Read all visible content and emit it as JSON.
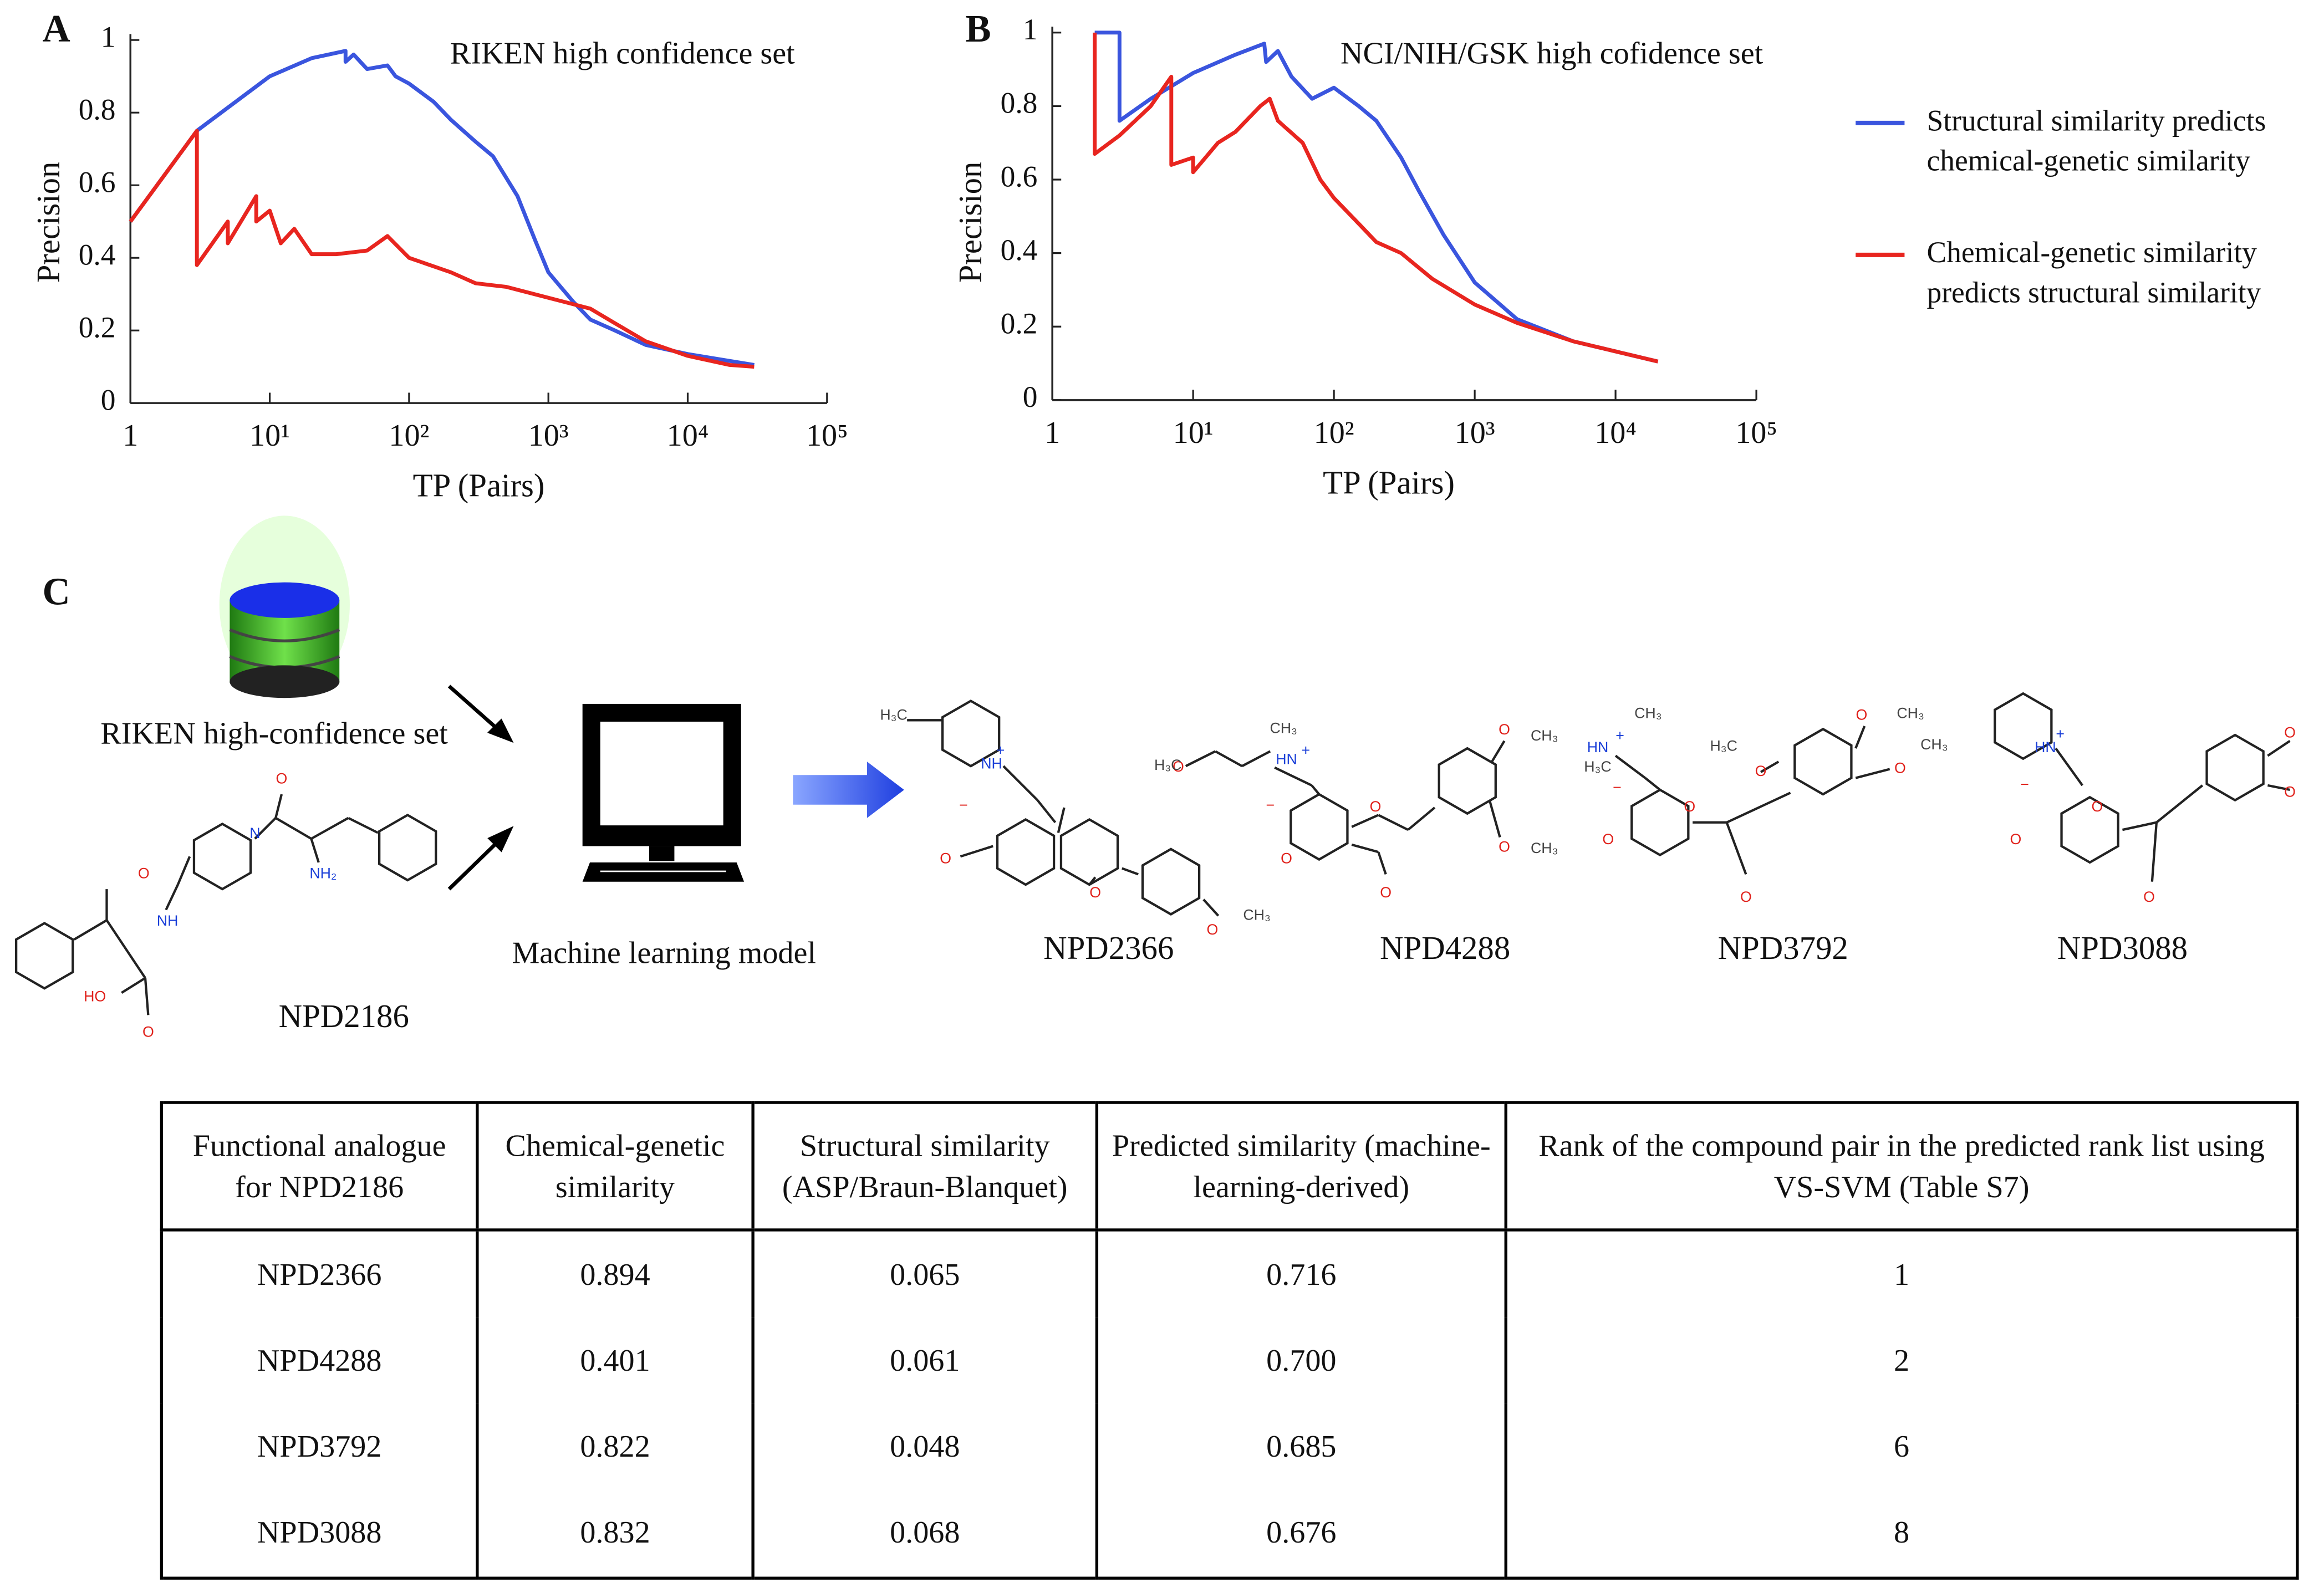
{
  "chart_data": [
    {
      "type": "line",
      "panel": "A",
      "title": "RIKEN high confidence set",
      "xlabel": "TP (Pairs)",
      "ylabel": "Precision",
      "xscale": "log",
      "xlim": [
        1,
        100000
      ],
      "ylim": [
        0,
        1
      ],
      "xticks": [
        1,
        {
          "value": 10,
          "label": "10¹"
        },
        {
          "value": 100,
          "label": "10²"
        },
        {
          "value": 1000,
          "label": "10³"
        },
        {
          "value": 10000,
          "label": "10⁴"
        },
        {
          "value": 100000,
          "label": "10⁵"
        }
      ],
      "yticks": [
        0,
        0.2,
        0.4,
        0.6,
        0.8,
        1
      ],
      "series": [
        {
          "color": "#3a55de",
          "x": [
            1,
            3,
            10,
            20,
            35,
            35,
            40,
            50,
            70,
            80,
            100,
            150,
            200,
            300,
            400,
            600,
            800,
            1000,
            1500,
            2000,
            3000,
            5000,
            10000,
            30000
          ],
          "values": [
            0.5,
            0.75,
            0.9,
            0.95,
            0.97,
            0.94,
            0.96,
            0.92,
            0.93,
            0.9,
            0.88,
            0.83,
            0.78,
            0.72,
            0.68,
            0.57,
            0.45,
            0.36,
            0.28,
            0.23,
            0.2,
            0.16,
            0.135,
            0.105
          ]
        },
        {
          "color": "#e8251f",
          "x": [
            1,
            3,
            3,
            5,
            5,
            8,
            8,
            10,
            12,
            15,
            20,
            30,
            50,
            70,
            100,
            200,
            300,
            500,
            1000,
            2000,
            3000,
            5000,
            10000,
            20000,
            30000
          ],
          "values": [
            0.5,
            0.75,
            0.38,
            0.5,
            0.44,
            0.57,
            0.5,
            0.53,
            0.44,
            0.48,
            0.41,
            0.41,
            0.42,
            0.46,
            0.4,
            0.36,
            0.33,
            0.32,
            0.29,
            0.26,
            0.22,
            0.17,
            0.13,
            0.105,
            0.1
          ]
        }
      ]
    },
    {
      "type": "line",
      "panel": "B",
      "title": "NCI/NIH/GSK high cofidence set",
      "xlabel": "TP (Pairs)",
      "ylabel": "Precision",
      "xscale": "log",
      "xlim": [
        1,
        100000
      ],
      "ylim": [
        0,
        1
      ],
      "legend": "right",
      "xticks": [
        1,
        {
          "value": 10,
          "label": "10¹"
        },
        {
          "value": 100,
          "label": "10²"
        },
        {
          "value": 1000,
          "label": "10³"
        },
        {
          "value": 10000,
          "label": "10⁴"
        },
        {
          "value": 100000,
          "label": "10⁵"
        }
      ],
      "yticks": [
        0,
        0.2,
        0.4,
        0.6,
        0.8,
        1
      ],
      "series": [
        {
          "name": "Structural similarity predicts chemical-genetic similarity",
          "color": "#3a55de",
          "x": [
            2,
            3,
            3,
            5,
            10,
            20,
            32,
            33,
            40,
            50,
            70,
            100,
            150,
            200,
            300,
            400,
            600,
            1000,
            2000,
            5000,
            20000
          ],
          "values": [
            1,
            1,
            0.76,
            0.82,
            0.89,
            0.94,
            0.97,
            0.92,
            0.95,
            0.88,
            0.82,
            0.85,
            0.8,
            0.76,
            0.66,
            0.57,
            0.45,
            0.32,
            0.22,
            0.16,
            0.105
          ]
        },
        {
          "name": "Chemical-genetic similarity predicts structural similarity",
          "color": "#e8251f",
          "x": [
            2,
            2,
            3,
            5,
            7,
            7,
            10,
            10,
            15,
            20,
            30,
            35,
            40,
            60,
            80,
            100,
            150,
            200,
            300,
            500,
            1000,
            2000,
            5000,
            20000
          ],
          "values": [
            1,
            0.67,
            0.72,
            0.8,
            0.88,
            0.64,
            0.66,
            0.62,
            0.7,
            0.73,
            0.8,
            0.82,
            0.76,
            0.7,
            0.6,
            0.55,
            0.48,
            0.43,
            0.4,
            0.33,
            0.26,
            0.21,
            0.16,
            0.105
          ]
        }
      ]
    }
  ],
  "diagram": {
    "panel": "C",
    "database_label": "RIKEN high-confidence set",
    "model_label": "Machine learning model",
    "molecules": [
      {
        "name": "NPD2186",
        "atoms": [
          "O",
          "O",
          "NH",
          "N",
          "NH₂",
          "HO",
          "O"
        ]
      },
      {
        "name": "NPD2366",
        "atoms": [
          "H₃C",
          "NH",
          "+",
          "−",
          "O",
          "O",
          "O",
          "O",
          "CH₃"
        ]
      },
      {
        "name": "NPD4288",
        "atoms": [
          "H₃C",
          "CH₃",
          "HN",
          "+",
          "−",
          "O",
          "O",
          "O",
          "O",
          "CH₃",
          "O",
          "CH₃"
        ]
      },
      {
        "name": "NPD3792",
        "atoms": [
          "CH₃",
          "HN",
          "+",
          "H₃C",
          "−",
          "O",
          "O",
          "O",
          "H₃C",
          "O",
          "O",
          "CH₃",
          "O",
          "CH₃"
        ]
      },
      {
        "name": "NPD3088",
        "atoms": [
          "HN",
          "+",
          "−",
          "O",
          "O",
          "O",
          "O",
          "O"
        ]
      }
    ]
  },
  "table": {
    "header": [
      "Functional analogue for NPD2186",
      "Chemical-genetic similarity",
      "Structural similarity (ASP/Braun-Blanquet)",
      "Predicted similarity (machine-learning-derived)",
      "Rank of the compound pair in the predicted rank list using VS-SVM (Table S7)"
    ],
    "rows": [
      [
        "NPD2366",
        "0.894",
        "0.065",
        "0.716",
        1
      ],
      [
        "NPD4288",
        "0.401",
        "0.061",
        "0.700",
        2
      ],
      [
        "NPD3792",
        "0.822",
        "0.048",
        "0.685",
        6
      ],
      [
        "NPD3088",
        "0.832",
        "0.068",
        "0.676",
        8
      ]
    ]
  }
}
